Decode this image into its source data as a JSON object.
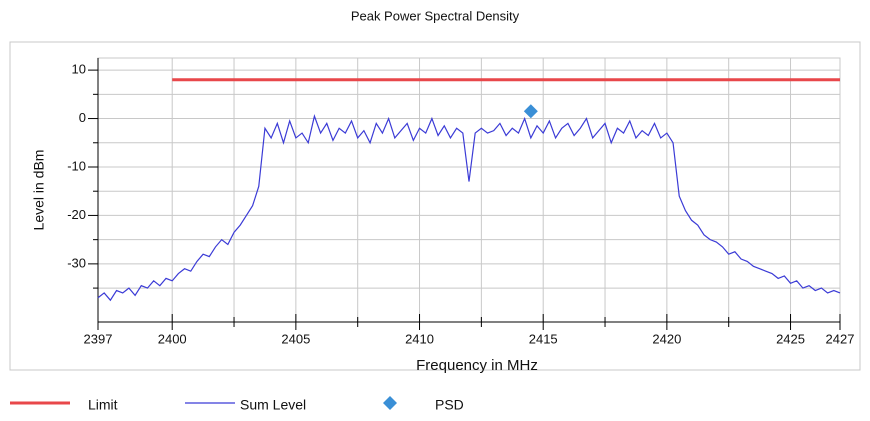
{
  "chart_data": {
    "type": "line",
    "title": "Peak Power Spectral Density",
    "x_label": "Frequency in MHz",
    "y_label": "Level in dBm",
    "xlim": [
      2397,
      2427
    ],
    "xticks": [
      2397,
      2400,
      2405,
      2410,
      2415,
      2420,
      2425,
      2427
    ],
    "xminor": [
      2402.5,
      2407.5,
      2412.5,
      2417.5,
      2422.5
    ],
    "ylim": [
      -42,
      12.5
    ],
    "yticks": [
      -30,
      -20,
      -10,
      0,
      10
    ],
    "yminor": [
      -35,
      -25,
      -15,
      -5,
      5
    ],
    "grid": true,
    "legend": "bottom",
    "series": [
      {
        "name": "Limit",
        "color": "#e8474a",
        "x": [
          2400,
          2427
        ],
        "values": [
          8,
          8
        ]
      },
      {
        "name": "Sum Level",
        "color": "#3b3bd6",
        "x": [
          2397,
          2397.25,
          2397.5,
          2397.75,
          2398,
          2398.25,
          2398.5,
          2398.75,
          2399,
          2399.25,
          2399.5,
          2399.75,
          2400,
          2400.25,
          2400.5,
          2400.75,
          2401,
          2401.25,
          2401.5,
          2401.75,
          2402,
          2402.25,
          2402.5,
          2402.75,
          2403,
          2403.25,
          2403.5,
          2403.75,
          2404,
          2404.25,
          2404.5,
          2404.75,
          2405,
          2405.25,
          2405.5,
          2405.75,
          2406,
          2406.25,
          2406.5,
          2406.75,
          2407,
          2407.25,
          2407.5,
          2407.75,
          2408,
          2408.25,
          2408.5,
          2408.75,
          2409,
          2409.25,
          2409.5,
          2409.75,
          2410,
          2410.25,
          2410.5,
          2410.75,
          2411,
          2411.25,
          2411.5,
          2411.75,
          2412,
          2412.25,
          2412.5,
          2412.75,
          2413,
          2413.25,
          2413.5,
          2413.75,
          2414,
          2414.25,
          2414.5,
          2414.75,
          2415,
          2415.25,
          2415.5,
          2415.75,
          2416,
          2416.25,
          2416.5,
          2416.75,
          2417,
          2417.25,
          2417.5,
          2417.75,
          2418,
          2418.25,
          2418.5,
          2418.75,
          2419,
          2419.25,
          2419.5,
          2419.75,
          2420,
          2420.25,
          2420.5,
          2420.75,
          2421,
          2421.25,
          2421.5,
          2421.75,
          2422,
          2422.25,
          2422.5,
          2422.75,
          2423,
          2423.25,
          2423.5,
          2423.75,
          2424,
          2424.25,
          2424.5,
          2424.75,
          2425,
          2425.25,
          2425.5,
          2425.75,
          2426,
          2426.25,
          2426.5,
          2426.75,
          2427
        ],
        "values": [
          -37,
          -36,
          -37.5,
          -35.5,
          -36,
          -35,
          -36.5,
          -34.5,
          -35,
          -33.5,
          -34.5,
          -33,
          -33.5,
          -32,
          -31,
          -31.5,
          -29.5,
          -28,
          -28.5,
          -26.5,
          -25,
          -26,
          -23.5,
          -22,
          -20,
          -18,
          -14,
          -2,
          -4,
          -1,
          -5,
          -0.5,
          -4,
          -3,
          -5,
          0.5,
          -3,
          -1,
          -4.5,
          -2,
          -3,
          -0.5,
          -4,
          -2.5,
          -5,
          -1,
          -3,
          0,
          -4,
          -2.5,
          -1,
          -4.5,
          -2,
          -3,
          0,
          -3.5,
          -1.5,
          -4,
          -2,
          -3,
          -13,
          -3,
          -2,
          -3,
          -2.5,
          -1,
          -3.5,
          -2,
          -3,
          0,
          -4,
          -1.5,
          -3,
          -0.5,
          -4,
          -2,
          -1,
          -3.5,
          -2,
          0,
          -4,
          -2.5,
          -1,
          -5,
          -2,
          -3,
          -0.5,
          -4,
          -2.5,
          -3.5,
          -1,
          -4,
          -3,
          -5,
          -16,
          -19,
          -21,
          -22,
          -24,
          -25,
          -25.5,
          -26.5,
          -28,
          -27.5,
          -29,
          -29.5,
          -30.5,
          -31,
          -31.5,
          -32,
          -33,
          -32.5,
          -34,
          -33.5,
          -35,
          -34.5,
          -35.5,
          -35,
          -36,
          -35.5,
          -36
        ]
      },
      {
        "name": "PSD",
        "color": "#3a8fd6",
        "marker": "diamond",
        "x": [
          2414.5
        ],
        "values": [
          1.5
        ]
      }
    ]
  }
}
